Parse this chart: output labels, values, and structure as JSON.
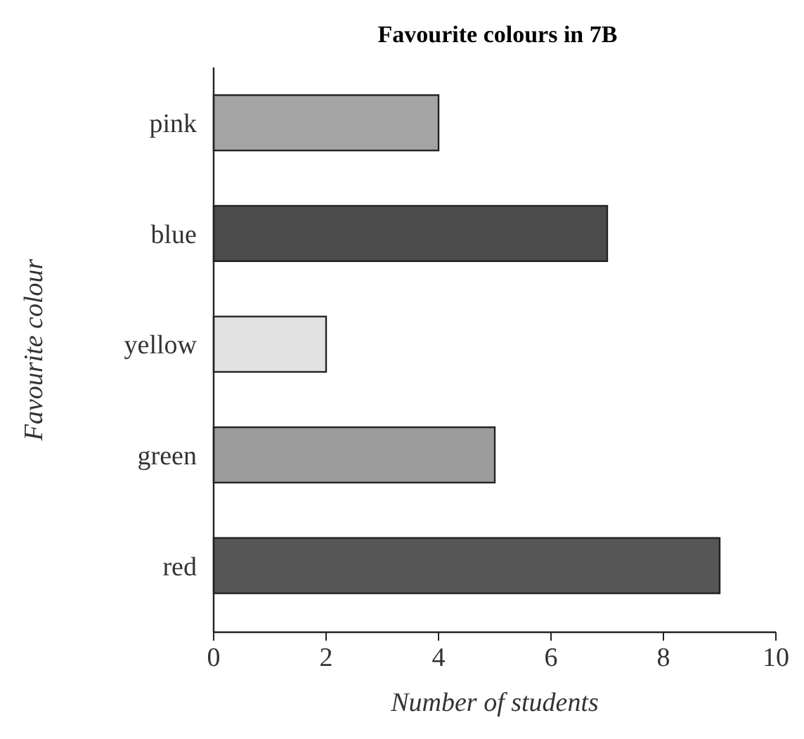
{
  "chart_data": {
    "type": "bar",
    "orientation": "horizontal",
    "title": "Favourite colours in 7B",
    "xlabel": "Number of students",
    "ylabel": "Favourite colour",
    "categories": [
      "pink",
      "blue",
      "yellow",
      "green",
      "red"
    ],
    "values": [
      4,
      7,
      2,
      5,
      9
    ],
    "colors": [
      "#a4a4a4",
      "#4b4b4b",
      "#e2e2e2",
      "#9c9c9c",
      "#565656"
    ],
    "xlim": [
      0,
      10
    ],
    "xticks": [
      0,
      2,
      4,
      6,
      8,
      10
    ],
    "grid": false
  }
}
